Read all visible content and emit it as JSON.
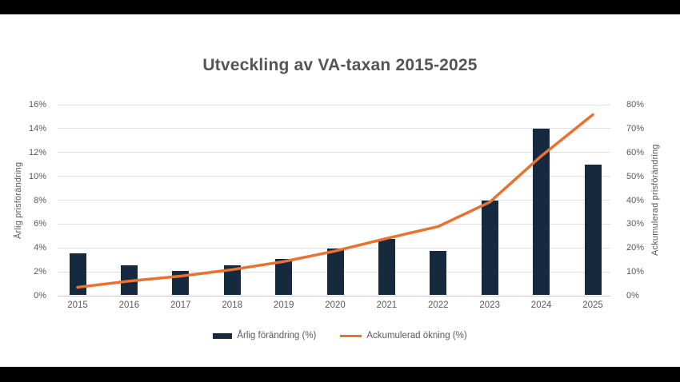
{
  "frame": {
    "letterbox_color": "#000000",
    "canvas_color": "#ffffff"
  },
  "chart_data": {
    "type": "bar",
    "subtype": "combo-bar-line",
    "title": "Utveckling av VA-taxan 2015-2025",
    "categories": [
      "2015",
      "2016",
      "2017",
      "2018",
      "2019",
      "2020",
      "2021",
      "2022",
      "2023",
      "2024",
      "2025"
    ],
    "series": [
      {
        "name": "Årlig förändring (%)",
        "type": "bar",
        "axis": "left",
        "color": "#17293e",
        "values": [
          3.5,
          2.5,
          2.0,
          2.5,
          3.0,
          3.9,
          4.7,
          3.7,
          7.9,
          13.9,
          10.9
        ]
      },
      {
        "name": "Ackumulerad ökning (%)",
        "type": "line",
        "axis": "right",
        "color": "#e97132",
        "values": [
          3.5,
          6.1,
          8.2,
          10.9,
          14.3,
          18.7,
          24.0,
          29.0,
          39.2,
          58.5,
          75.8
        ]
      }
    ],
    "xlabel": "",
    "ylabel_left": "Årlig prisförändring",
    "ylabel_right": "Ackumulerad prisförändring",
    "left_axis": {
      "min": 0,
      "max": 16,
      "step": 2,
      "suffix": "%"
    },
    "right_axis": {
      "min": 0,
      "max": 80,
      "step": 10,
      "suffix": "%"
    },
    "grid": true,
    "legend_position": "bottom",
    "text_color": "#595959",
    "title_color": "#53545c",
    "gridline_color": "#e0e0e0"
  }
}
